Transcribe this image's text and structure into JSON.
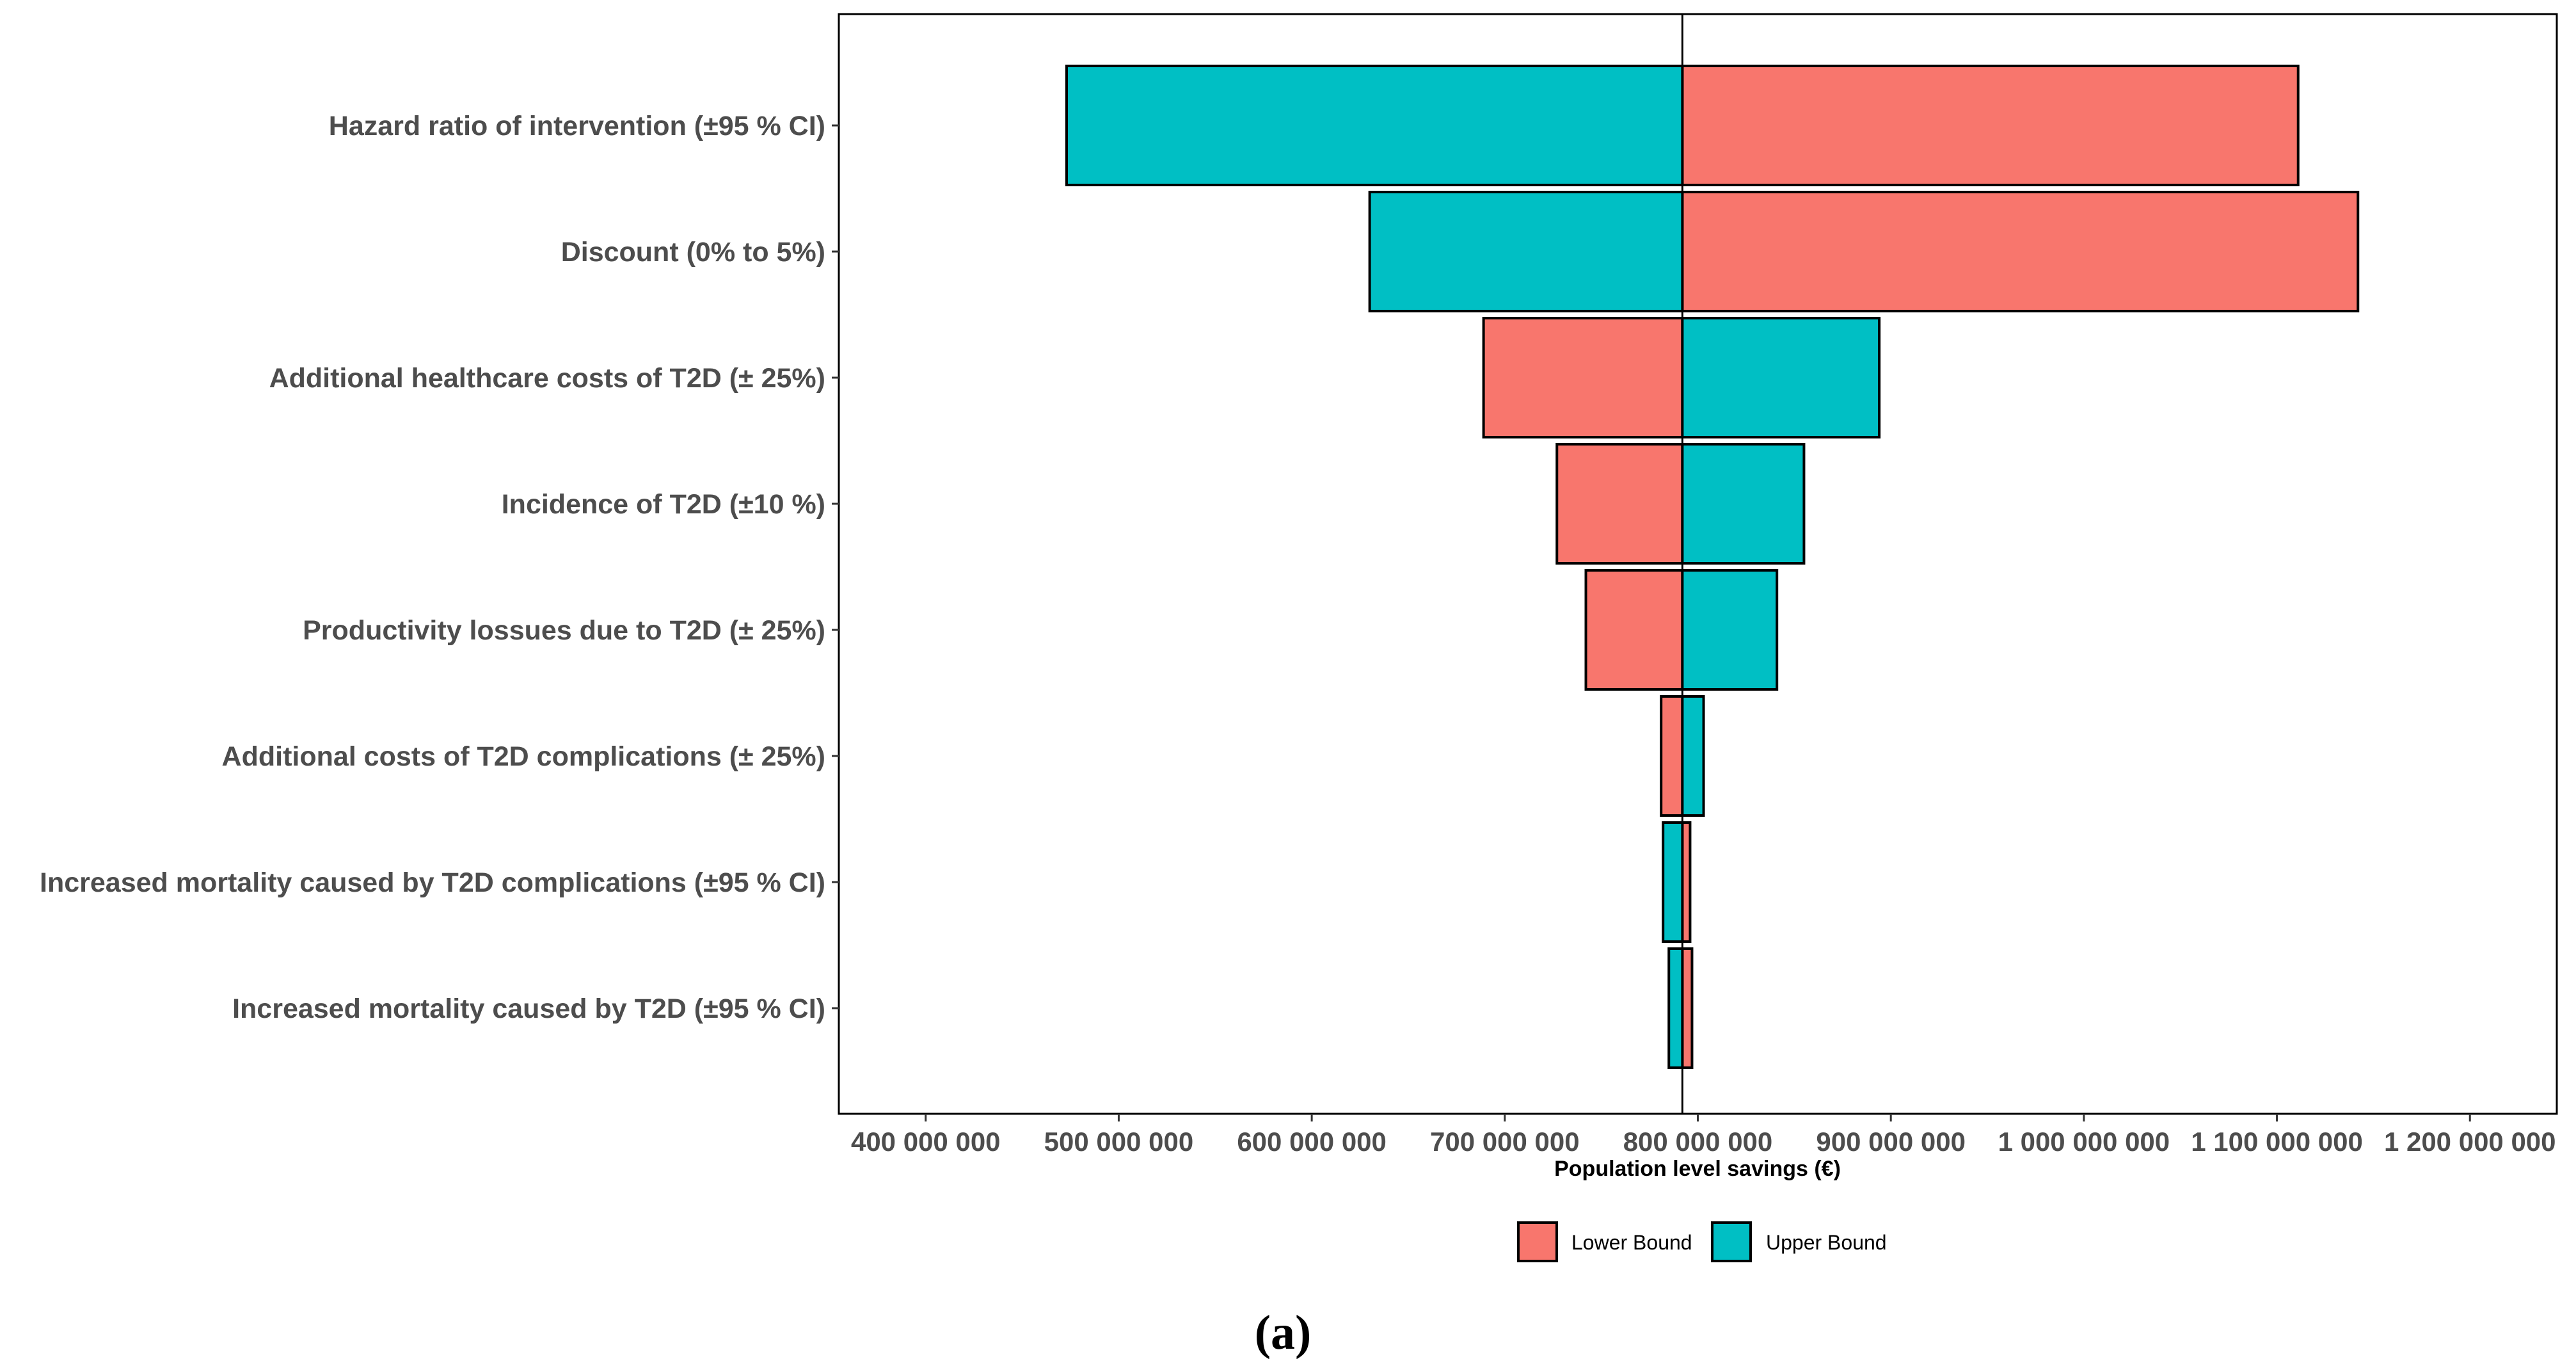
{
  "chart_data": {
    "type": "bar",
    "subtype": "tornado",
    "orientation": "horizontal",
    "title": "",
    "xlabel": "Population level savings (€)",
    "ylabel": "",
    "baseline": 792000000,
    "xlim": [
      355000000,
      1245000000
    ],
    "xticks": [
      400000000,
      500000000,
      600000000,
      700000000,
      800000000,
      900000000,
      1000000000,
      1100000000,
      1200000000
    ],
    "xtick_labels": [
      "400 000 000",
      "500 000 000",
      "600 000 000",
      "700 000 000",
      "800 000 000",
      "900 000 000",
      "1 000 000 000",
      "1 100 000 000",
      "1 200 000 000"
    ],
    "categories": [
      "Hazard ratio of intervention (±95 % CI)",
      "Discount (0% to 5%)",
      "Additional healthcare costs of T2D (± 25%)",
      "Incidence of T2D (±10 %)",
      "Productivity lossues due to T2D (± 25%)",
      "Additional costs of T2D complications (± 25%)",
      "Increased mortality caused by T2D complications (±95 % CI)",
      "Increased mortality caused by T2D (±95 % CI)"
    ],
    "series": [
      {
        "name": "Lower Bound",
        "color": "#F8766D",
        "values": [
          1111000000,
          1142000000,
          689000000,
          727000000,
          742000000,
          781000000,
          796000000,
          797000000
        ]
      },
      {
        "name": "Upper Bound",
        "color": "#00BFC4",
        "values": [
          473000000,
          630000000,
          894000000,
          855000000,
          841000000,
          803000000,
          782000000,
          785000000
        ]
      }
    ],
    "grid": false,
    "legend_position": "bottom"
  },
  "caption": "(a)"
}
